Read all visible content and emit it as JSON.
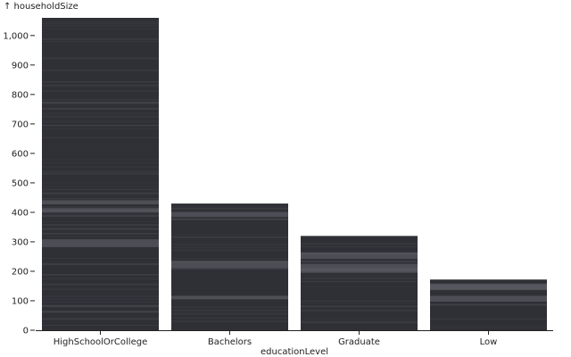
{
  "chart_data": {
    "type": "bar",
    "categories": [
      "HighSchoolOrCollege",
      "Bachelors",
      "Graduate",
      "Low"
    ],
    "values": [
      1060,
      430,
      320,
      172
    ],
    "xlabel": "educationLevel",
    "ylabel": "↑ householdSize",
    "ylim": [
      0,
      1060
    ],
    "y_ticks": [
      0,
      100,
      200,
      300,
      400,
      500,
      600,
      700,
      800,
      900,
      1000
    ],
    "y_tick_labels": [
      "0",
      "100",
      "200",
      "300",
      "400",
      "500",
      "600",
      "700",
      "800",
      "900",
      "1,000"
    ],
    "grid": false,
    "legend": "none",
    "bar_color": "#2f3036",
    "stripe_color": "#4a4b52"
  }
}
